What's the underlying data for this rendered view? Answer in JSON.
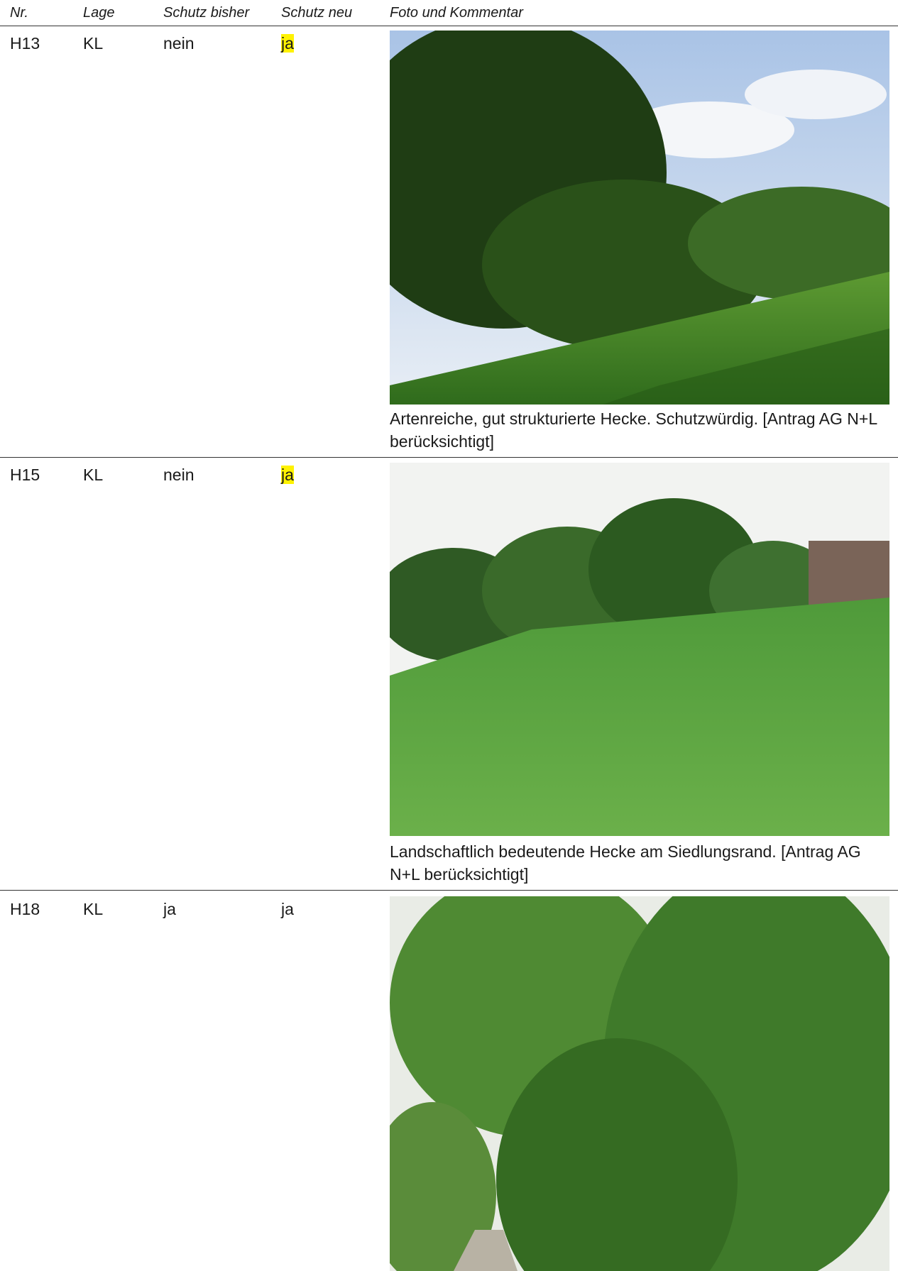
{
  "table": {
    "header": [
      "Nr.",
      "Lage",
      "Schutz bisher",
      "Schutz neu",
      "Foto und Kommentar"
    ],
    "rows": [
      {
        "nr": "H13",
        "lage": "KL",
        "schutz_bisher": "nein",
        "schutz_neu": "ja",
        "highlight": true,
        "kommentar": "Artenreiche, gut strukturierte Hecke. Schutzwürdig. [Antrag AG N+L berücksichtigt]"
      },
      {
        "nr": "H15",
        "lage": "KL",
        "schutz_bisher": "nein",
        "schutz_neu": "ja",
        "highlight": true,
        "kommentar": "Landschaftlich bedeutende Hecke am Siedlungsrand. [Antrag AG N+L berücksichtigt]"
      },
      {
        "nr": "H18",
        "lage": "KL",
        "schutz_bisher": "ja",
        "schutz_neu": "ja",
        "highlight": false
      }
    ]
  }
}
